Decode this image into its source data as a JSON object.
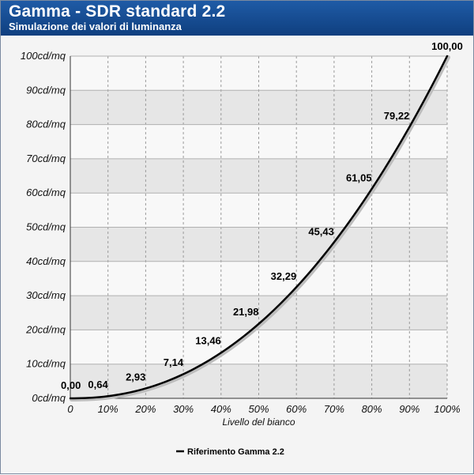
{
  "header": {
    "title": "Gamma - SDR standard 2.2",
    "subtitle": "Simulazione dei valori di luminanza"
  },
  "colors": {
    "header_top": "#1f5ba6",
    "header_bottom": "#0f3f7f",
    "band_dark": "#e6e6e6",
    "band_light": "#f8f8f8",
    "line": "#000000",
    "grid": "#9a9a9a"
  },
  "chart_data": {
    "type": "line",
    "xlabel": "Livello del bianco",
    "ylabel": "",
    "x_tick_labels": [
      "0",
      "10%",
      "20%",
      "30%",
      "40%",
      "50%",
      "60%",
      "70%",
      "80%",
      "90%",
      "100%"
    ],
    "y_tick_labels": [
      "0cd/mq",
      "10cd/mq",
      "20cd/mq",
      "30cd/mq",
      "40cd/mq",
      "50cd/mq",
      "60cd/mq",
      "70cd/mq",
      "80cd/mq",
      "90cd/mq",
      "100cd/mq"
    ],
    "xlim": [
      0,
      100
    ],
    "ylim": [
      0,
      100
    ],
    "grid": true,
    "legend_position": "bottom-center",
    "series": [
      {
        "name": "Riferimento Gamma 2.2",
        "x": [
          0,
          10,
          20,
          30,
          40,
          50,
          60,
          70,
          80,
          90,
          100
        ],
        "values": [
          0.0,
          0.64,
          2.93,
          7.14,
          13.46,
          21.98,
          32.29,
          45.43,
          61.05,
          79.22,
          100.0
        ],
        "labels": [
          "0,00",
          "0,64",
          "2,93",
          "7,14",
          "13,46",
          "21,98",
          "32,29",
          "45,43",
          "61,05",
          "79,22",
          "100,00"
        ]
      }
    ],
    "gamma": 2.2
  }
}
